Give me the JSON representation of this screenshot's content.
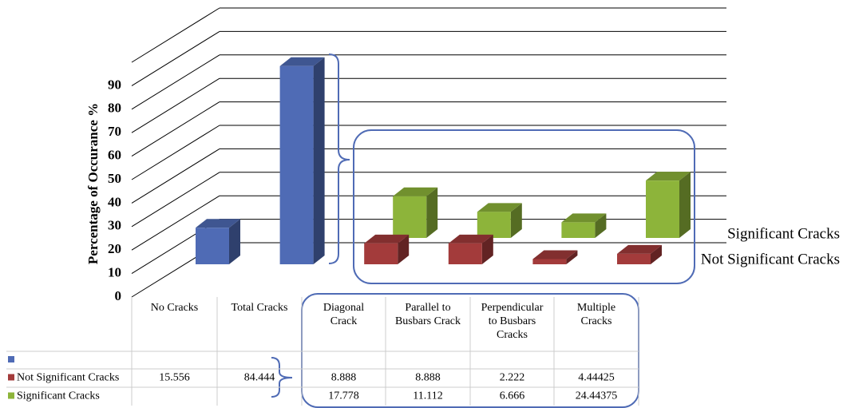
{
  "chart_data": {
    "type": "bar3d",
    "y_label": "Percentage  of Occurance %",
    "categories": [
      "No Cracks",
      "Total Cracks",
      "Diagonal Crack",
      "Parallel to Busbars Crack",
      "Perpendicular to Busbars Cracks",
      "Multiple Cracks"
    ],
    "depth_labels": [
      "Significant Cracks",
      "Not Significant Cracks"
    ],
    "series": [
      {
        "color": "#4f6bb5",
        "values": [
          null,
          null,
          null,
          null,
          null,
          null
        ]
      },
      {
        "name": "Not Significant Cracks",
        "color": "#a33b3b",
        "point_colors": [
          "#4f6bb5",
          "#4f6bb5",
          "#a33b3b",
          "#a33b3b",
          "#a33b3b",
          "#a33b3b"
        ],
        "values": [
          15.556,
          84.444,
          8.888,
          8.888,
          2.222,
          4.44425
        ]
      },
      {
        "name": "Significant Cracks",
        "color": "#8db43a",
        "values": [
          null,
          null,
          17.778,
          11.112,
          6.666,
          24.44375
        ]
      }
    ],
    "ylim": [
      0,
      100
    ],
    "yticks": [
      0,
      10,
      20,
      30,
      40,
      50,
      60,
      70,
      80,
      90
    ],
    "grid": true
  }
}
